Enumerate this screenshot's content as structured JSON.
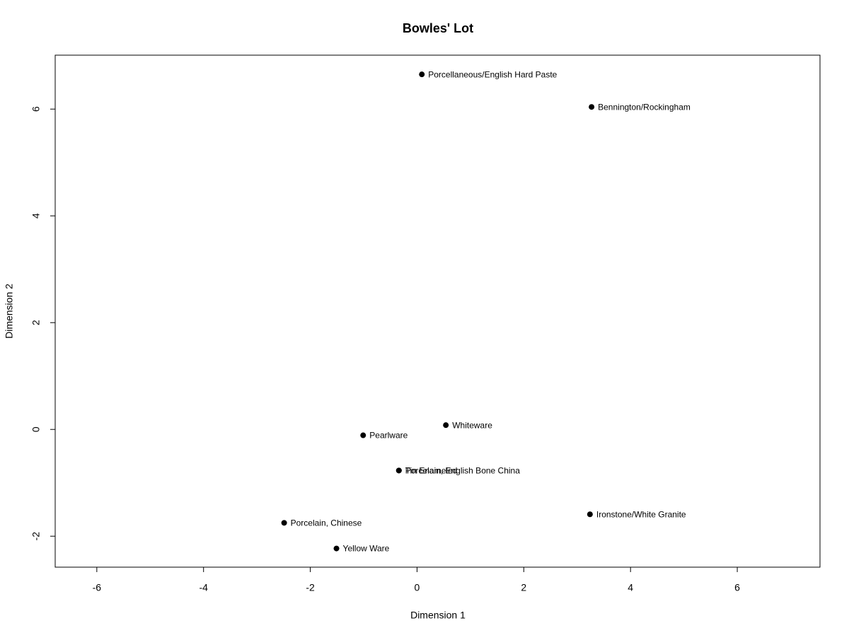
{
  "chart_data": {
    "type": "scatter",
    "title": "Bowles' Lot",
    "x_label": "Dimension 1",
    "y_label": "Dimension 2",
    "xlim": [
      -6.78,
      7.55
    ],
    "ylim": [
      -2.58,
      7.01
    ],
    "xticks": [
      -6,
      -4,
      -2,
      0,
      2,
      4,
      6
    ],
    "yticks": [
      -2,
      0,
      2,
      4,
      6
    ],
    "color": "#000000",
    "labels": [
      "Porcellaneous/English Hard Paste",
      "Bennington/Rockingham",
      "Whiteware",
      "Pearlware",
      "Porcelain, English Bone China",
      "Tin Enameled",
      "Ironstone/White Granite",
      "Porcelain, Chinese",
      "Yellow Ware"
    ],
    "x": [
      0.09,
      3.27,
      0.54,
      -1.01,
      -0.34,
      -0.34,
      3.24,
      -2.49,
      -1.51
    ],
    "y": [
      6.65,
      6.04,
      0.08,
      -0.11,
      -0.77,
      -0.77,
      -1.59,
      -1.75,
      -2.23
    ]
  }
}
